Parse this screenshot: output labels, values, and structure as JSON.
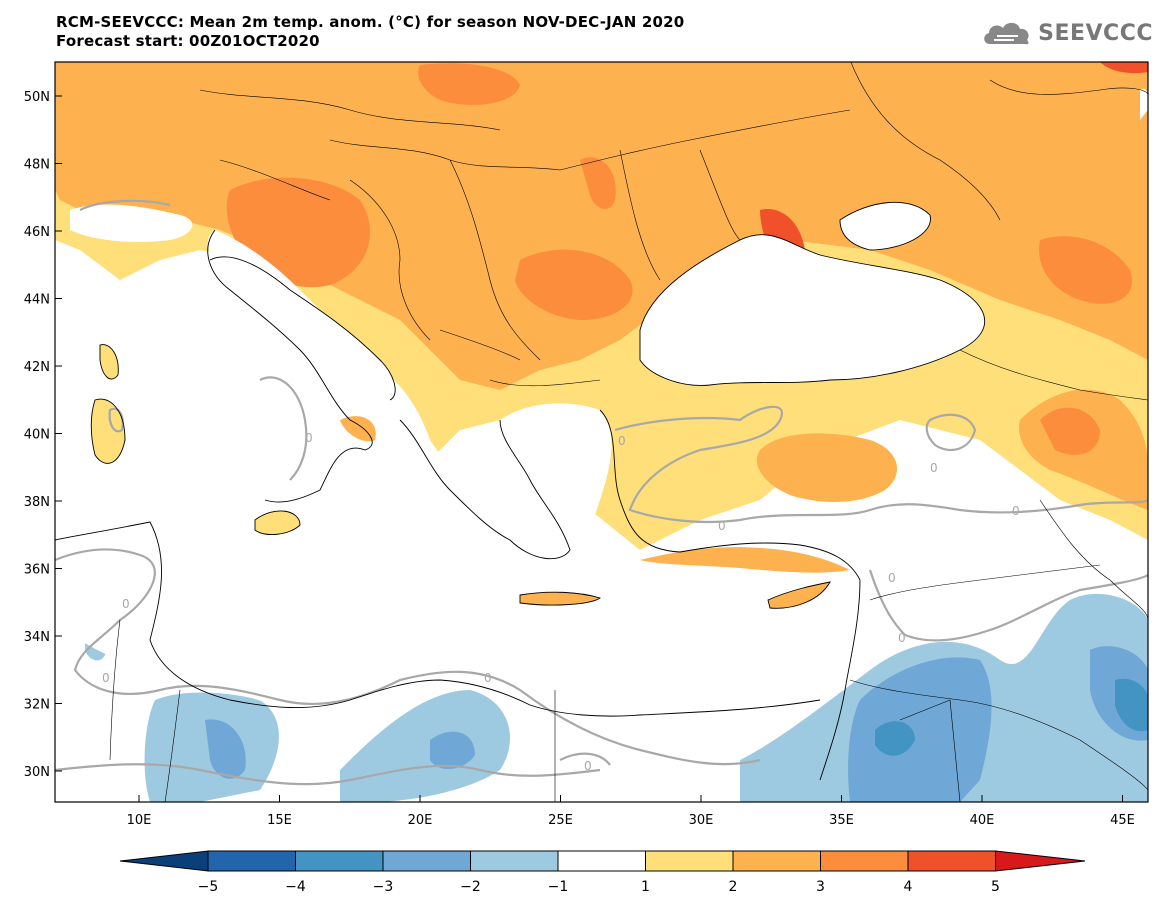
{
  "title_line1": "RCM-SEEVCCC: Mean 2m temp. anom. (°C) for season NOV-DEC-JAN 2020",
  "title_line2": "Forecast start: 00Z01OCT2020",
  "logo_text": "SEEVCCC",
  "lat_labels": [
    "50N",
    "48N",
    "46N",
    "44N",
    "42N",
    "40N",
    "38N",
    "36N",
    "34N",
    "32N",
    "30N"
  ],
  "lon_labels": [
    "10E",
    "15E",
    "20E",
    "25E",
    "30E",
    "35E",
    "40E",
    "45E"
  ],
  "contour_label": "0",
  "colorbar": {
    "tick_labels": [
      "−5",
      "−4",
      "−3",
      "−2",
      "−1",
      "1",
      "2",
      "3",
      "4",
      "5"
    ],
    "colors": [
      "#0a3f7a",
      "#2166ac",
      "#4393c3",
      "#6fa8d6",
      "#9ecae1",
      "#ffffff",
      "#fedf7a",
      "#fdb14f",
      "#fc8d3c",
      "#f0502a",
      "#d7191c"
    ]
  },
  "palette": {
    "warm1": "#fedf7a",
    "warm2": "#fdb14f",
    "warm3": "#fc8d3c",
    "warm4": "#f0502a",
    "warm5": "#d7191c",
    "cool1": "#9ecae1",
    "cool2": "#6fa8d6",
    "cool3": "#4393c3"
  }
}
